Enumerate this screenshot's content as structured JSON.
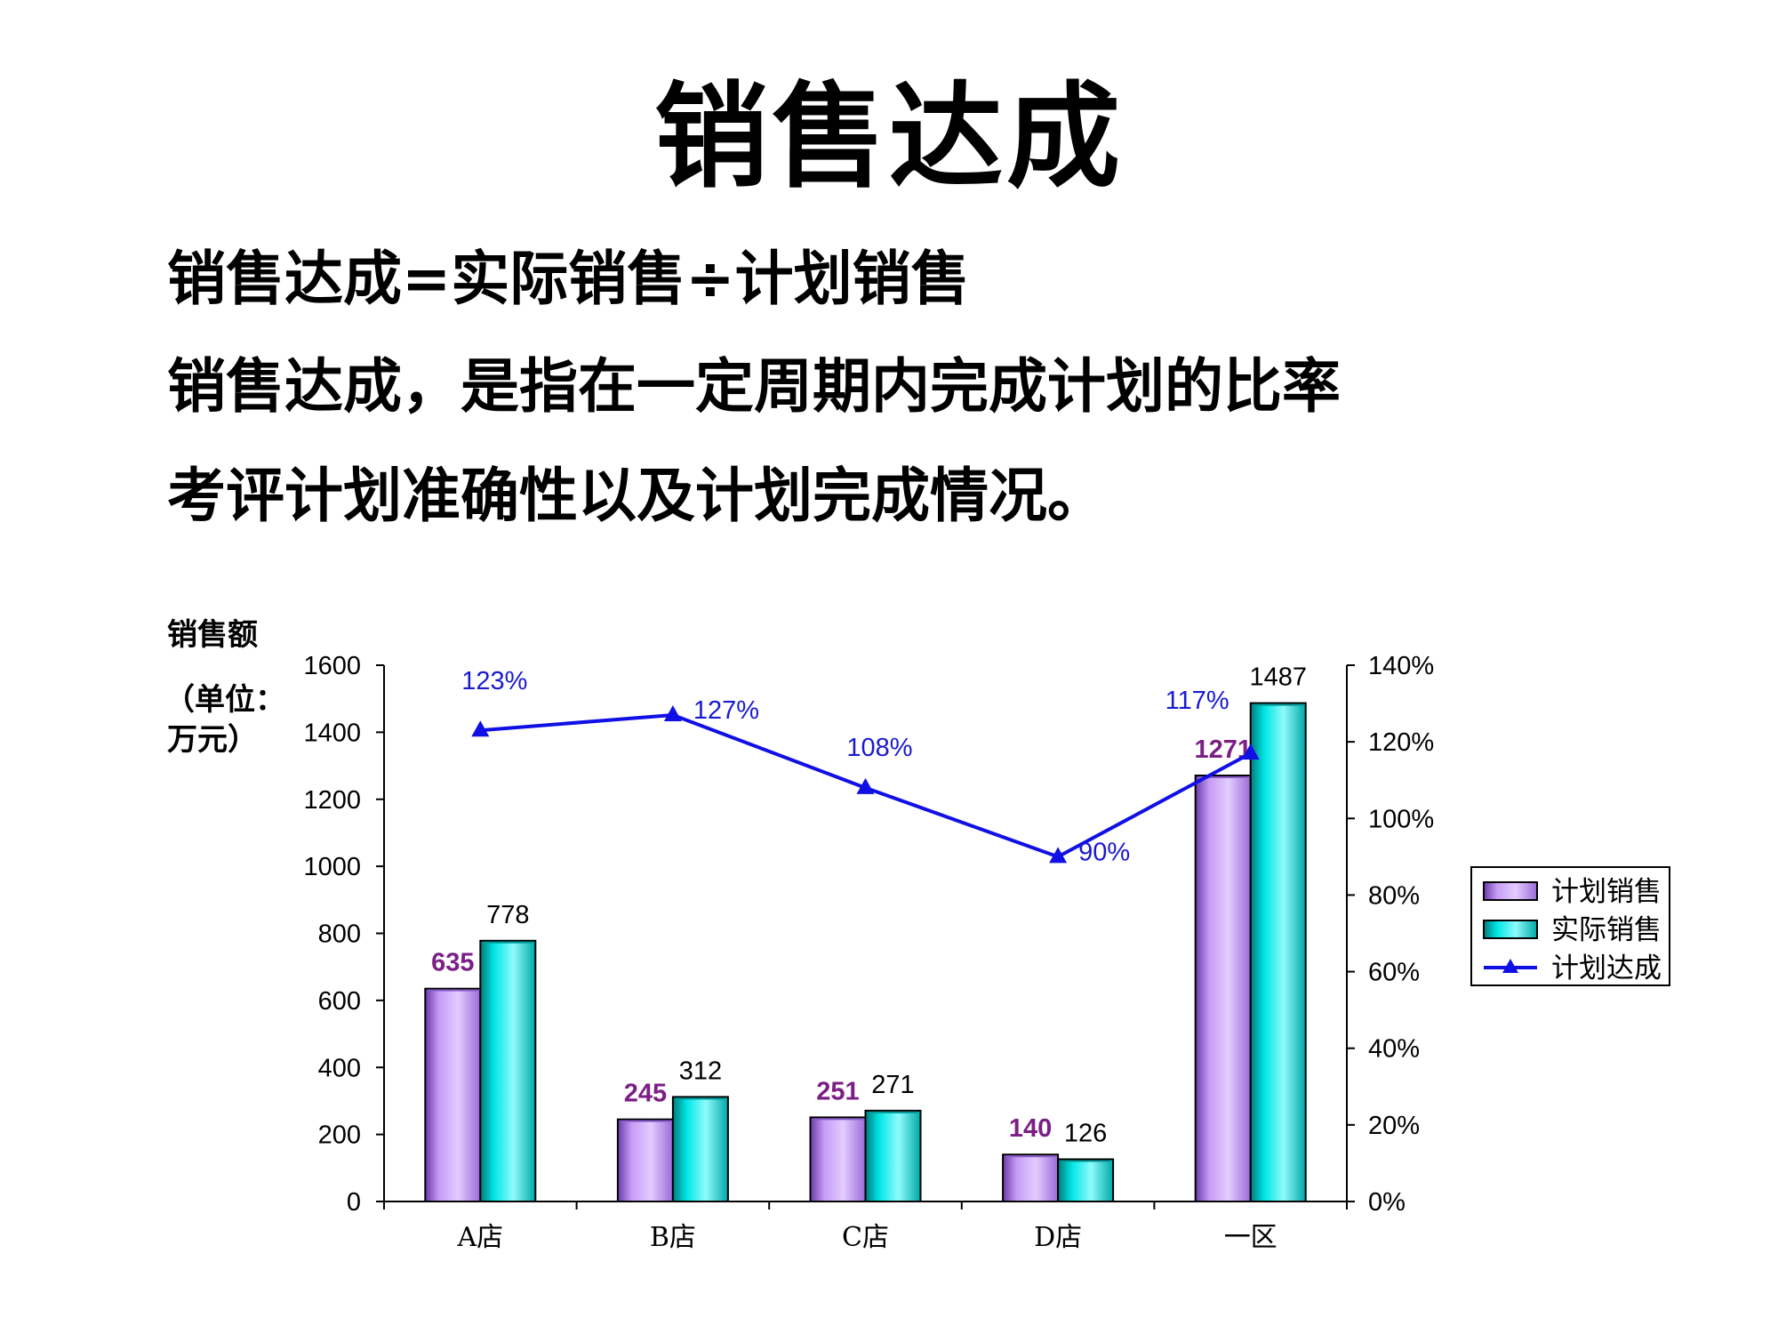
{
  "title": "销售达成",
  "lines": [
    "销售达成=实际销售÷计划销售",
    "销售达成，是指在一定周期内完成计划的比率",
    "考评计划准确性以及计划完成情况。"
  ],
  "chart_data": {
    "type": "bar",
    "ylabel_lines": [
      "销售额",
      "（单位：",
      "万元）"
    ],
    "categories": [
      "A店",
      "B店",
      "C店",
      "D店",
      "一区"
    ],
    "series": [
      {
        "name": "计划销售",
        "kind": "bar",
        "axis": "left",
        "values": [
          635,
          245,
          251,
          140,
          1271
        ],
        "labels": [
          "635",
          "245",
          "251",
          "140",
          "1271"
        ]
      },
      {
        "name": "实际销售",
        "kind": "bar",
        "axis": "left",
        "values": [
          778,
          312,
          271,
          126,
          1487
        ],
        "labels": [
          "778",
          "312",
          "271",
          "126",
          "1487"
        ]
      },
      {
        "name": "计划达成",
        "kind": "line",
        "axis": "right",
        "values": [
          1.23,
          1.27,
          1.08,
          0.9,
          1.17
        ],
        "labels": [
          "123%",
          "127%",
          "108%",
          "90%",
          "117%"
        ]
      }
    ],
    "ylim": [
      0,
      1600
    ],
    "yticks": [
      "0",
      "200",
      "400",
      "600",
      "800",
      "1000",
      "1200",
      "1400",
      "1600"
    ],
    "y2lim": [
      0,
      1.4
    ],
    "y2ticks": [
      "0%",
      "20%",
      "40%",
      "60%",
      "80%",
      "100%",
      "120%",
      "140%"
    ],
    "legend_position": "right",
    "grid": false,
    "colors": {
      "plan_bar": "#c69cf6",
      "plan_bar_shade": "#8a5ccc",
      "actual_bar": "#00e6e6",
      "actual_bar_shade": "#009a9a",
      "line": "#1010e6",
      "plan_label": "#7b1f86",
      "percent_label": "#1a1ad0"
    }
  }
}
